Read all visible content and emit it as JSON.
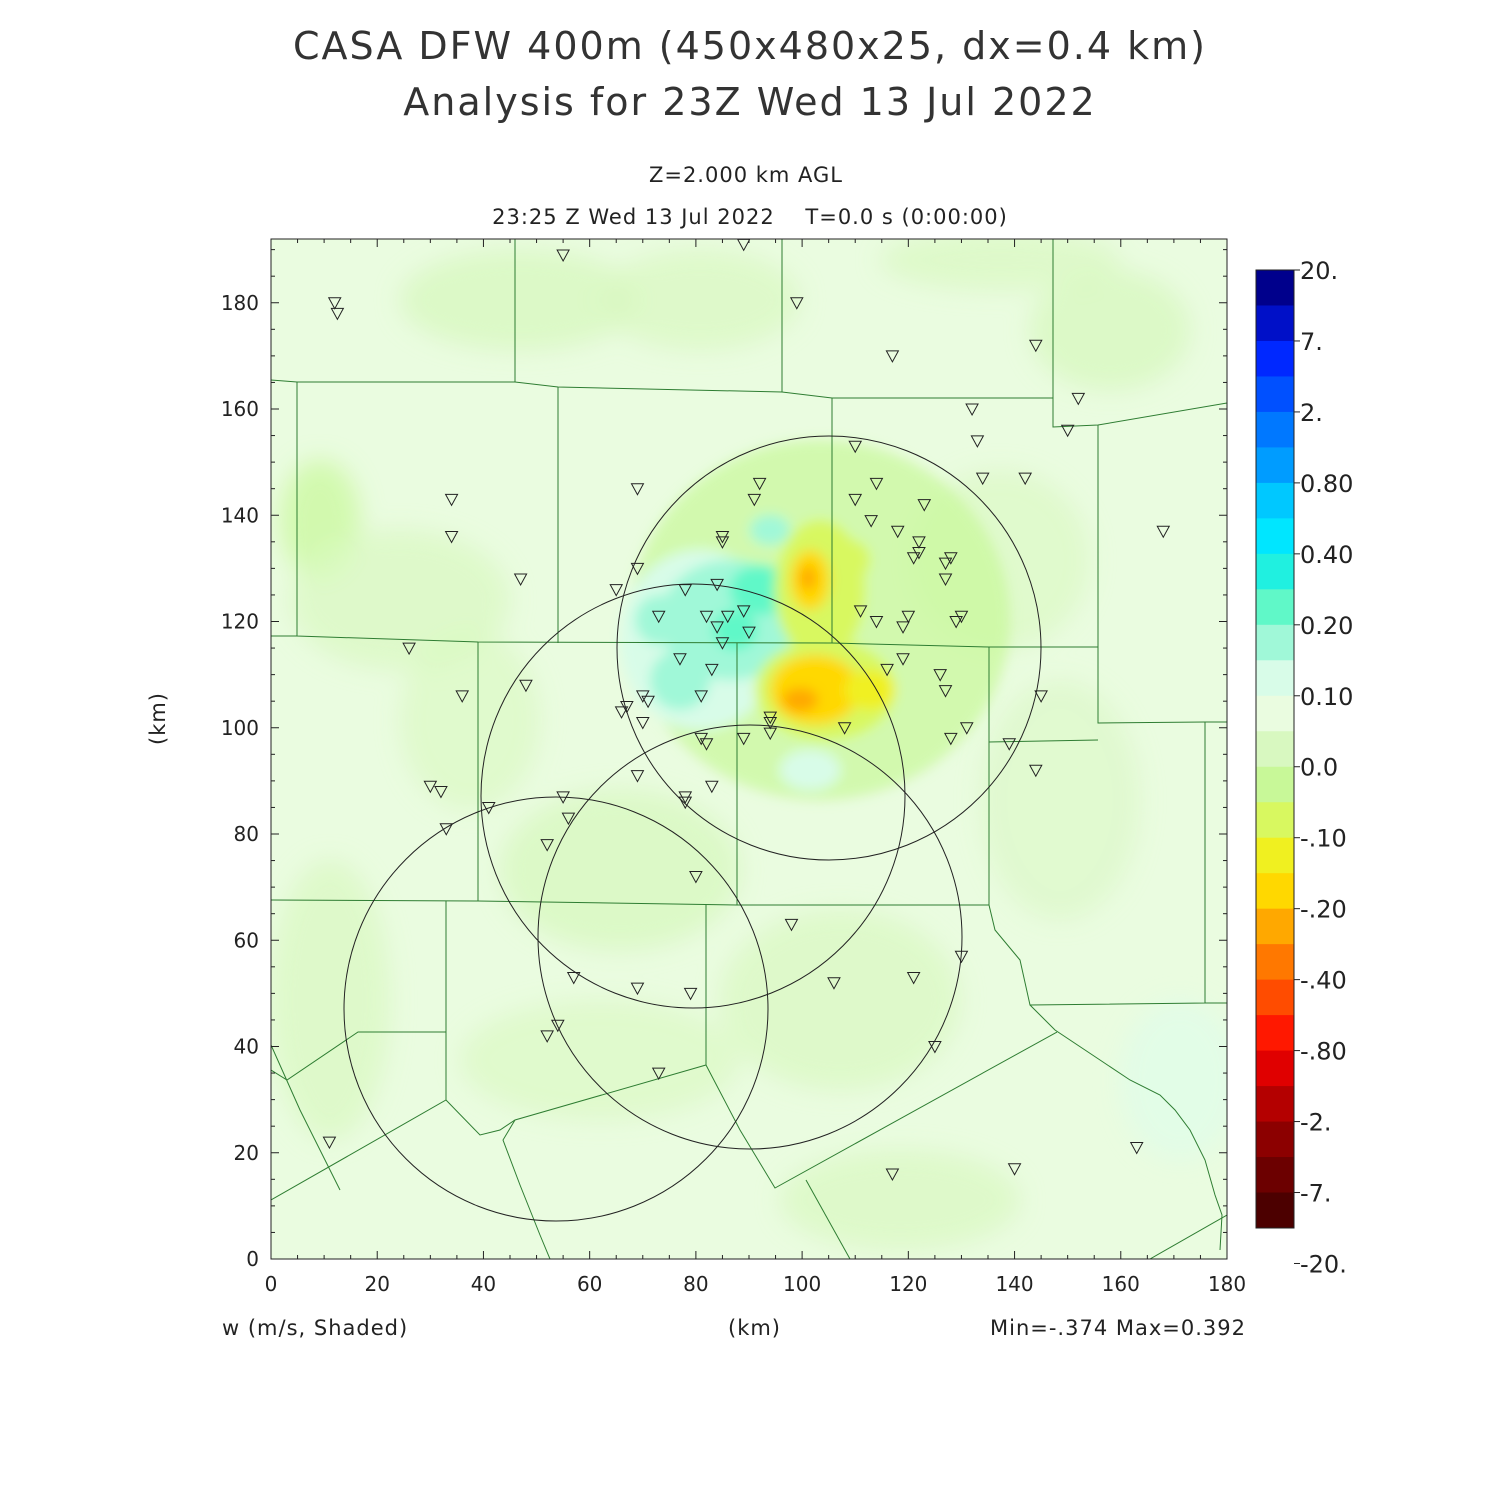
{
  "title": {
    "line1": "CASA DFW 400m (450x480x25, dx=0.4 km)",
    "line2": "Analysis for 23Z Wed 13 Jul 2022"
  },
  "subtitle": {
    "level": "Z=2.000 km AGL",
    "time": "23:25 Z Wed 13 Jul 2022    T=0.0 s (0:00:00)"
  },
  "footer": {
    "variable": "w (m/s, Shaded)",
    "x_unit": "(km)",
    "minmax": "Min=-.374 Max=0.392"
  },
  "axes": {
    "y_unit": "(km)",
    "x_ticks": [
      "0",
      "20",
      "40",
      "60",
      "80",
      "100",
      "120",
      "140",
      "160",
      "180"
    ],
    "y_ticks": [
      "0",
      "20",
      "40",
      "60",
      "80",
      "100",
      "120",
      "140",
      "160",
      "180"
    ],
    "x_range": [
      0,
      180
    ],
    "y_range": [
      0,
      192
    ]
  },
  "colorbar": {
    "labels": [
      "20.",
      "7.",
      "2.",
      "0.80",
      "0.40",
      "0.20",
      "0.10",
      "0.0",
      "-.10",
      "-.20",
      "-.40",
      "-.80",
      "-2.",
      "-7.",
      "-20."
    ],
    "colors": [
      "#00008c",
      "#0010c8",
      "#0028ff",
      "#0050ff",
      "#0078ff",
      "#009cff",
      "#00c8ff",
      "#00e6ff",
      "#20f0e0",
      "#60f8c8",
      "#a0f8d8",
      "#d8fce8",
      "#eafce0",
      "#d8f8c0",
      "#c8f898",
      "#d8f860",
      "#f0f020",
      "#ffd800",
      "#ffa800",
      "#ff7800",
      "#ff4c00",
      "#ff1800",
      "#e00000",
      "#b40000",
      "#8c0000",
      "#6c0000",
      "#4c0000"
    ]
  },
  "chart_data": {
    "type": "heatmap",
    "field": "w (m/s, Shaded)",
    "xlabel": "(km)",
    "ylabel": "(km)",
    "xlim": [
      0,
      180
    ],
    "ylim": [
      0,
      192
    ],
    "min": -0.374,
    "max": 0.392,
    "contour_levels": [
      20,
      7,
      2,
      0.8,
      0.4,
      0.2,
      0.1,
      0.0,
      -0.1,
      -0.2,
      -0.4,
      -0.8,
      -2,
      -7,
      -20
    ],
    "radar_circles_km": [
      {
        "cx": 105,
        "cy": 115,
        "r": 40
      },
      {
        "cx": 79,
        "cy": 89,
        "r": 40
      },
      {
        "cx": 91,
        "cy": 61,
        "r": 40
      },
      {
        "cx": 55,
        "cy": 47,
        "r": 40
      }
    ],
    "features": [
      {
        "name": "updraft",
        "x": 87,
        "y": 120,
        "value": 0.392
      },
      {
        "name": "updraft",
        "x": 79,
        "y": 110,
        "value": 0.3
      },
      {
        "name": "downdraft",
        "x": 101,
        "y": 127,
        "value": -0.3
      },
      {
        "name": "downdraft",
        "x": 102,
        "y": 107,
        "value": -0.374
      },
      {
        "name": "downdraft",
        "x": 111,
        "y": 110,
        "value": -0.25
      }
    ],
    "stations_km": [
      [
        12,
        180
      ],
      [
        12.5,
        178
      ],
      [
        55,
        189
      ],
      [
        89,
        191
      ],
      [
        99,
        180
      ],
      [
        117,
        170
      ],
      [
        144,
        172
      ],
      [
        152,
        162
      ],
      [
        150,
        156
      ],
      [
        132,
        160
      ],
      [
        133,
        154
      ],
      [
        134,
        147
      ],
      [
        142,
        147
      ],
      [
        168,
        137
      ],
      [
        34,
        143
      ],
      [
        34,
        136
      ],
      [
        47,
        128
      ],
      [
        26,
        115
      ],
      [
        36,
        106
      ],
      [
        48,
        108
      ],
      [
        69,
        145
      ],
      [
        69,
        130
      ],
      [
        65,
        126
      ],
      [
        73,
        121
      ],
      [
        78,
        126
      ],
      [
        82,
        121
      ],
      [
        84,
        127
      ],
      [
        86,
        121
      ],
      [
        84,
        119
      ],
      [
        85,
        116
      ],
      [
        83,
        111
      ],
      [
        81,
        106
      ],
      [
        77,
        113
      ],
      [
        71,
        105
      ],
      [
        70,
        106
      ],
      [
        67,
        104
      ],
      [
        66,
        103
      ],
      [
        70,
        101
      ],
      [
        91,
        143
      ],
      [
        92,
        146
      ],
      [
        85,
        135
      ],
      [
        85,
        136
      ],
      [
        89,
        122
      ],
      [
        90,
        118
      ],
      [
        110,
        153
      ],
      [
        110,
        143
      ],
      [
        114,
        146
      ],
      [
        113,
        139
      ],
      [
        111,
        122
      ],
      [
        114,
        120
      ],
      [
        118,
        137
      ],
      [
        119,
        119
      ],
      [
        120,
        121
      ],
      [
        122,
        135
      ],
      [
        123,
        142
      ],
      [
        121,
        132
      ],
      [
        122,
        133
      ],
      [
        127,
        131
      ],
      [
        128,
        132
      ],
      [
        127,
        128
      ],
      [
        130,
        121
      ],
      [
        129,
        120
      ],
      [
        126,
        110
      ],
      [
        127,
        107
      ],
      [
        128,
        98
      ],
      [
        131,
        100
      ],
      [
        139,
        97
      ],
      [
        144,
        92
      ],
      [
        145,
        106
      ],
      [
        116,
        111
      ],
      [
        119,
        113
      ],
      [
        108,
        100
      ],
      [
        94,
        102
      ],
      [
        94,
        101
      ],
      [
        94,
        99
      ],
      [
        89,
        98
      ],
      [
        81,
        98
      ],
      [
        82,
        97
      ],
      [
        83,
        89
      ],
      [
        78,
        87
      ],
      [
        78,
        86
      ],
      [
        69,
        91
      ],
      [
        30,
        89
      ],
      [
        32,
        88
      ],
      [
        33,
        81
      ],
      [
        41,
        85
      ],
      [
        55,
        87
      ],
      [
        56,
        83
      ],
      [
        52,
        78
      ],
      [
        80,
        72
      ],
      [
        98,
        63
      ],
      [
        57,
        53
      ],
      [
        54,
        44
      ],
      [
        52,
        42
      ],
      [
        69,
        51
      ],
      [
        79,
        50
      ],
      [
        106,
        52
      ],
      [
        121,
        53
      ],
      [
        130,
        57
      ],
      [
        125,
        40
      ],
      [
        73,
        35
      ],
      [
        11,
        22
      ],
      [
        117,
        16
      ],
      [
        140,
        17
      ],
      [
        163,
        21
      ]
    ]
  }
}
